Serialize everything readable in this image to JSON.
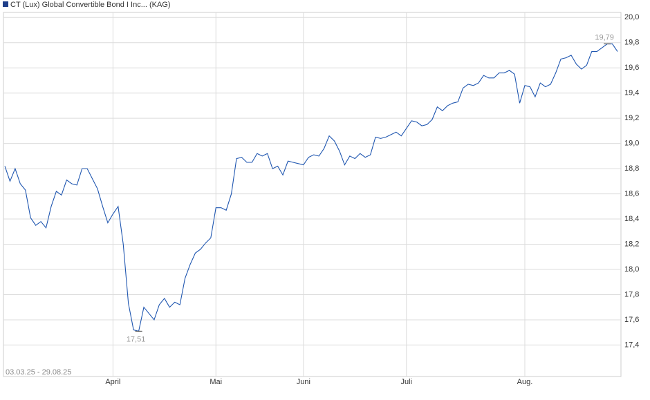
{
  "chart_data": {
    "type": "line",
    "x_label": "03.03.25 - 29.08.25",
    "categories": [
      null,
      null,
      null,
      null,
      null,
      null,
      null,
      null,
      null,
      null,
      null,
      null,
      null,
      null,
      null,
      null,
      null,
      null,
      null,
      null,
      null,
      "April",
      null,
      null,
      null,
      null,
      null,
      null,
      null,
      null,
      null,
      null,
      null,
      null,
      null,
      null,
      null,
      null,
      null,
      null,
      null,
      "Mai",
      null,
      null,
      null,
      null,
      null,
      null,
      null,
      null,
      null,
      null,
      null,
      null,
      null,
      null,
      null,
      null,
      "Juni",
      null,
      null,
      null,
      null,
      null,
      null,
      null,
      null,
      null,
      null,
      null,
      null,
      null,
      null,
      null,
      null,
      null,
      null,
      null,
      "Juli",
      null,
      null,
      null,
      null,
      null,
      null,
      null,
      null,
      null,
      null,
      null,
      null,
      null,
      null,
      null,
      null,
      null,
      null,
      null,
      null,
      null,
      null,
      "Aug.",
      null,
      null,
      null,
      null,
      null,
      null,
      null,
      null,
      null,
      null,
      null,
      null,
      null,
      null,
      null,
      null,
      null,
      null
    ],
    "series": [
      {
        "name": "CT (Lux) Global Convertible Bond I Inc... (KAG)",
        "color": "#1f56b0",
        "values": [
          18.82,
          18.7,
          18.8,
          18.68,
          18.63,
          18.41,
          18.35,
          18.38,
          18.33,
          18.5,
          18.62,
          18.59,
          18.71,
          18.68,
          18.67,
          18.8,
          18.8,
          18.72,
          18.64,
          18.5,
          18.37,
          18.44,
          18.5,
          18.2,
          17.73,
          17.52,
          17.51,
          17.7,
          17.65,
          17.6,
          17.72,
          17.77,
          17.7,
          17.74,
          17.72,
          17.93,
          18.04,
          18.13,
          18.16,
          18.21,
          18.25,
          18.49,
          18.49,
          18.47,
          18.6,
          18.88,
          18.89,
          18.85,
          18.85,
          18.92,
          18.9,
          18.92,
          18.8,
          18.82,
          18.75,
          18.86,
          18.85,
          18.84,
          18.83,
          18.89,
          18.91,
          18.9,
          18.96,
          19.06,
          19.02,
          18.94,
          18.83,
          18.9,
          18.88,
          18.92,
          18.89,
          18.91,
          19.05,
          19.04,
          19.05,
          19.07,
          19.09,
          19.06,
          19.12,
          19.18,
          19.17,
          19.14,
          19.15,
          19.19,
          19.29,
          19.26,
          19.3,
          19.32,
          19.33,
          19.44,
          19.47,
          19.46,
          19.48,
          19.54,
          19.52,
          19.52,
          19.56,
          19.56,
          19.58,
          19.55,
          19.32,
          19.46,
          19.45,
          19.37,
          19.48,
          19.45,
          19.47,
          19.56,
          19.67,
          19.68,
          19.7,
          19.63,
          19.59,
          19.62,
          19.73,
          19.73,
          19.76,
          19.79,
          19.79,
          19.73
        ],
        "value_labels": [
          null,
          null,
          null,
          null,
          null,
          null,
          null,
          null,
          null,
          null,
          null,
          null,
          null,
          null,
          null,
          null,
          null,
          null,
          null,
          null,
          null,
          null,
          null,
          null,
          null,
          null,
          "17,51",
          null,
          null,
          null,
          null,
          null,
          null,
          null,
          null,
          null,
          null,
          null,
          null,
          null,
          null,
          null,
          null,
          null,
          null,
          null,
          null,
          null,
          null,
          null,
          null,
          null,
          null,
          null,
          null,
          null,
          null,
          null,
          null,
          null,
          null,
          null,
          null,
          null,
          null,
          null,
          null,
          null,
          null,
          null,
          null,
          null,
          null,
          null,
          null,
          null,
          null,
          null,
          null,
          null,
          null,
          null,
          null,
          null,
          null,
          null,
          null,
          null,
          null,
          null,
          null,
          null,
          null,
          null,
          null,
          null,
          null,
          null,
          null,
          null,
          null,
          null,
          null,
          null,
          null,
          null,
          null,
          null,
          null,
          null,
          null,
          null,
          null,
          null,
          null,
          null,
          null,
          "19,79",
          null,
          null
        ]
      }
    ],
    "ylim": [
      17.15,
      20.04
    ],
    "yticks": [
      {
        "value": 17.4,
        "label": "17,4"
      },
      {
        "value": 17.6,
        "label": "17,6"
      },
      {
        "value": 17.8,
        "label": "17,8"
      },
      {
        "value": 18.0,
        "label": "18,0"
      },
      {
        "value": 18.2,
        "label": "18,2"
      },
      {
        "value": 18.4,
        "label": "18,4"
      },
      {
        "value": 18.6,
        "label": "18,6"
      },
      {
        "value": 18.8,
        "label": "18,8"
      },
      {
        "value": 19.0,
        "label": "19,0"
      },
      {
        "value": 19.2,
        "label": "19,2"
      },
      {
        "value": 19.4,
        "label": "19,4"
      },
      {
        "value": 19.6,
        "label": "19,6"
      },
      {
        "value": 19.8,
        "label": "19,8"
      },
      {
        "value": 20.0,
        "label": "20,0"
      }
    ],
    "grid": true
  }
}
